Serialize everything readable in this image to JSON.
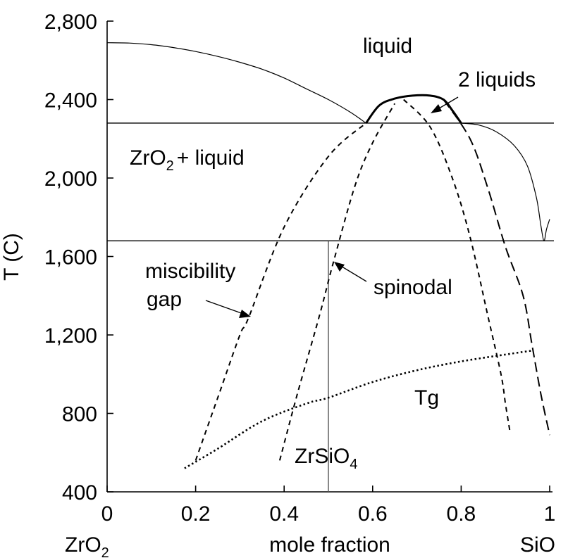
{
  "chart_data": {
    "type": "line",
    "ylabel": "T (C)",
    "xlabel": "mole fraction",
    "xlim": [
      0,
      1
    ],
    "ylim": [
      400,
      2800
    ],
    "x_ticks": [
      {
        "v": 0,
        "label": "0"
      },
      {
        "v": 0.2,
        "label": "0.2"
      },
      {
        "v": 0.4,
        "label": "0.4"
      },
      {
        "v": 0.6,
        "label": "0.6"
      },
      {
        "v": 0.8,
        "label": "0.8"
      },
      {
        "v": 1,
        "label": "1"
      }
    ],
    "y_ticks": [
      {
        "v": 400,
        "label": "400"
      },
      {
        "v": 800,
        "label": "800"
      },
      {
        "v": 1200,
        "label": "1,200"
      },
      {
        "v": 1600,
        "label": "1,600"
      },
      {
        "v": 2000,
        "label": "2,000"
      },
      {
        "v": 2400,
        "label": "2,400"
      },
      {
        "v": 2800,
        "label": "2,800"
      }
    ],
    "end_labels": {
      "left_main": "ZrO",
      "left_sub": "2",
      "right_main": "SiO"
    },
    "annotations": {
      "liquid": "liquid",
      "two_liquids": "2 liquids",
      "zro2_liquid_main": "ZrO",
      "zro2_liquid_sub": "2",
      "zro2_liquid_rest": "+ liquid",
      "miscibility_1": "miscibility",
      "miscibility_2": "gap",
      "spinodal": "spinodal",
      "tg": "Tg",
      "zrsio4_main": "ZrSiO",
      "zrsio4_sub": "4"
    },
    "horizontal_lines": [
      {
        "name": "monotectic",
        "y": 2280
      },
      {
        "name": "eutectic",
        "y": 1680
      }
    ],
    "vertical_lines": [
      {
        "name": "zrsio4-composition",
        "x": 0.5,
        "y_range": [
          400,
          1680
        ]
      }
    ],
    "series": [
      {
        "key": "liquidus_zro2",
        "style": "solid",
        "points": [
          [
            0,
            2690
          ],
          [
            0.05,
            2688
          ],
          [
            0.1,
            2680
          ],
          [
            0.15,
            2665
          ],
          [
            0.2,
            2645
          ],
          [
            0.25,
            2620
          ],
          [
            0.3,
            2590
          ],
          [
            0.35,
            2555
          ],
          [
            0.4,
            2510
          ],
          [
            0.45,
            2455
          ],
          [
            0.5,
            2400
          ],
          [
            0.55,
            2335
          ],
          [
            0.585,
            2280
          ]
        ]
      },
      {
        "key": "liquidus_sio2",
        "style": "solid",
        "points": [
          [
            0.8,
            2280
          ],
          [
            0.84,
            2270
          ],
          [
            0.88,
            2235
          ],
          [
            0.92,
            2165
          ],
          [
            0.95,
            2060
          ],
          [
            0.97,
            1900
          ],
          [
            0.98,
            1760
          ],
          [
            0.987,
            1680
          ],
          [
            0.993,
            1740
          ],
          [
            1.0,
            1790
          ]
        ]
      },
      {
        "key": "binodal_dome",
        "style": "bold",
        "points": [
          [
            0.585,
            2280
          ],
          [
            0.615,
            2370
          ],
          [
            0.65,
            2405
          ],
          [
            0.69,
            2420
          ],
          [
            0.73,
            2420
          ],
          [
            0.76,
            2400
          ],
          [
            0.78,
            2345
          ],
          [
            0.8,
            2280
          ]
        ]
      },
      {
        "key": "binodal_left",
        "style": "dash",
        "points": [
          [
            0.2,
            560
          ],
          [
            0.25,
            880
          ],
          [
            0.3,
            1200
          ],
          [
            0.32,
            1290
          ],
          [
            0.4,
            1750
          ],
          [
            0.5,
            2110
          ],
          [
            0.585,
            2280
          ]
        ]
      },
      {
        "key": "spinodal_left",
        "style": "dash",
        "points": [
          [
            0.39,
            560
          ],
          [
            0.43,
            900
          ],
          [
            0.48,
            1300
          ],
          [
            0.51,
            1560
          ],
          [
            0.56,
            1960
          ],
          [
            0.6,
            2180
          ],
          [
            0.65,
            2380
          ]
        ]
      },
      {
        "key": "spinodal_right",
        "style": "dash",
        "points": [
          [
            0.67,
            2400
          ],
          [
            0.73,
            2260
          ],
          [
            0.78,
            2000
          ],
          [
            0.82,
            1700
          ],
          [
            0.86,
            1300
          ],
          [
            0.89,
            1000
          ],
          [
            0.9,
            850
          ],
          [
            0.91,
            710
          ]
        ]
      },
      {
        "key": "binodal_right",
        "style": "ldash",
        "points": [
          [
            0.76,
            2400
          ],
          [
            0.82,
            2200
          ],
          [
            0.86,
            1950
          ],
          [
            0.9,
            1650
          ],
          [
            0.94,
            1400
          ],
          [
            0.96,
            1150
          ],
          [
            0.98,
            900
          ],
          [
            1.0,
            690
          ]
        ]
      },
      {
        "key": "glass_transition",
        "style": "dot",
        "points": [
          [
            0.175,
            520
          ],
          [
            0.25,
            620
          ],
          [
            0.35,
            760
          ],
          [
            0.45,
            850
          ],
          [
            0.5,
            880
          ],
          [
            0.6,
            960
          ],
          [
            0.7,
            1020
          ],
          [
            0.8,
            1065
          ],
          [
            0.9,
            1100
          ],
          [
            0.96,
            1120
          ]
        ]
      }
    ]
  }
}
